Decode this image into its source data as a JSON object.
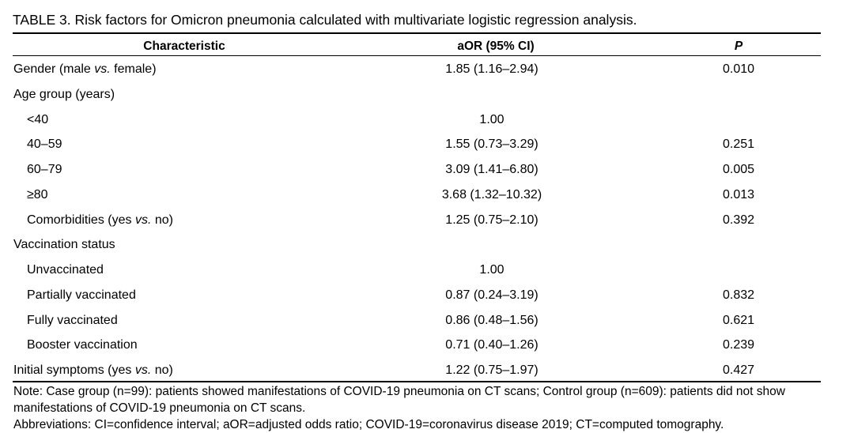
{
  "caption": "TABLE 3. Risk factors for Omicron pneumonia calculated with multivariate logistic regression analysis.",
  "headers": {
    "characteristic": "Characteristic",
    "aor": "aOR (95% CI)",
    "p": "P"
  },
  "rows": [
    {
      "pre": "Gender (male ",
      "em": "vs.",
      "post": " female)",
      "aor": "1.85 (1.16–2.94)",
      "p": "0.010",
      "indent": 0
    },
    {
      "pre": "Age group (years)",
      "em": "",
      "post": "",
      "aor": "",
      "p": "",
      "indent": 0
    },
    {
      "pre": "<40",
      "em": "",
      "post": "",
      "aor": "1.00",
      "p": "",
      "indent": 1
    },
    {
      "pre": "40–59",
      "em": "",
      "post": "",
      "aor": "1.55 (0.73–3.29)",
      "p": "0.251",
      "indent": 1
    },
    {
      "pre": "60–79",
      "em": "",
      "post": "",
      "aor": "3.09 (1.41–6.80)",
      "p": "0.005",
      "indent": 1
    },
    {
      "pre": "≥80",
      "em": "",
      "post": "",
      "aor": "3.68 (1.32–10.32)",
      "p": "0.013",
      "indent": 1
    },
    {
      "pre": "Comorbidities (yes ",
      "em": "vs.",
      "post": " no)",
      "aor": "1.25 (0.75–2.10)",
      "p": "0.392",
      "indent": 1
    },
    {
      "pre": "Vaccination status",
      "em": "",
      "post": "",
      "aor": "",
      "p": "",
      "indent": 0
    },
    {
      "pre": "Unvaccinated",
      "em": "",
      "post": "",
      "aor": "1.00",
      "p": "",
      "indent": 1
    },
    {
      "pre": "Partially vaccinated",
      "em": "",
      "post": "",
      "aor": "0.87 (0.24–3.19)",
      "p": "0.832",
      "indent": 1
    },
    {
      "pre": "Fully vaccinated",
      "em": "",
      "post": "",
      "aor": "0.86 (0.48–1.56)",
      "p": "0.621",
      "indent": 1
    },
    {
      "pre": "Booster vaccination",
      "em": "",
      "post": "",
      "aor": "0.71 (0.40–1.26)",
      "p": "0.239",
      "indent": 1
    },
    {
      "pre": "Initial symptoms (yes ",
      "em": "vs.",
      "post": " no)",
      "aor": "1.22 (0.75–1.97)",
      "p": "0.427",
      "indent": 0
    }
  ],
  "notes": {
    "note": "Note: Case group (n=99): patients showed manifestations of COVID-19 pneumonia on CT scans; Control group (n=609): patients did not show manifestations of COVID-19 pneumonia on CT scans.",
    "abbreviations": "Abbreviations: CI=confidence interval; aOR=adjusted odds ratio; COVID-19=coronavirus disease 2019; CT=computed tomography."
  }
}
